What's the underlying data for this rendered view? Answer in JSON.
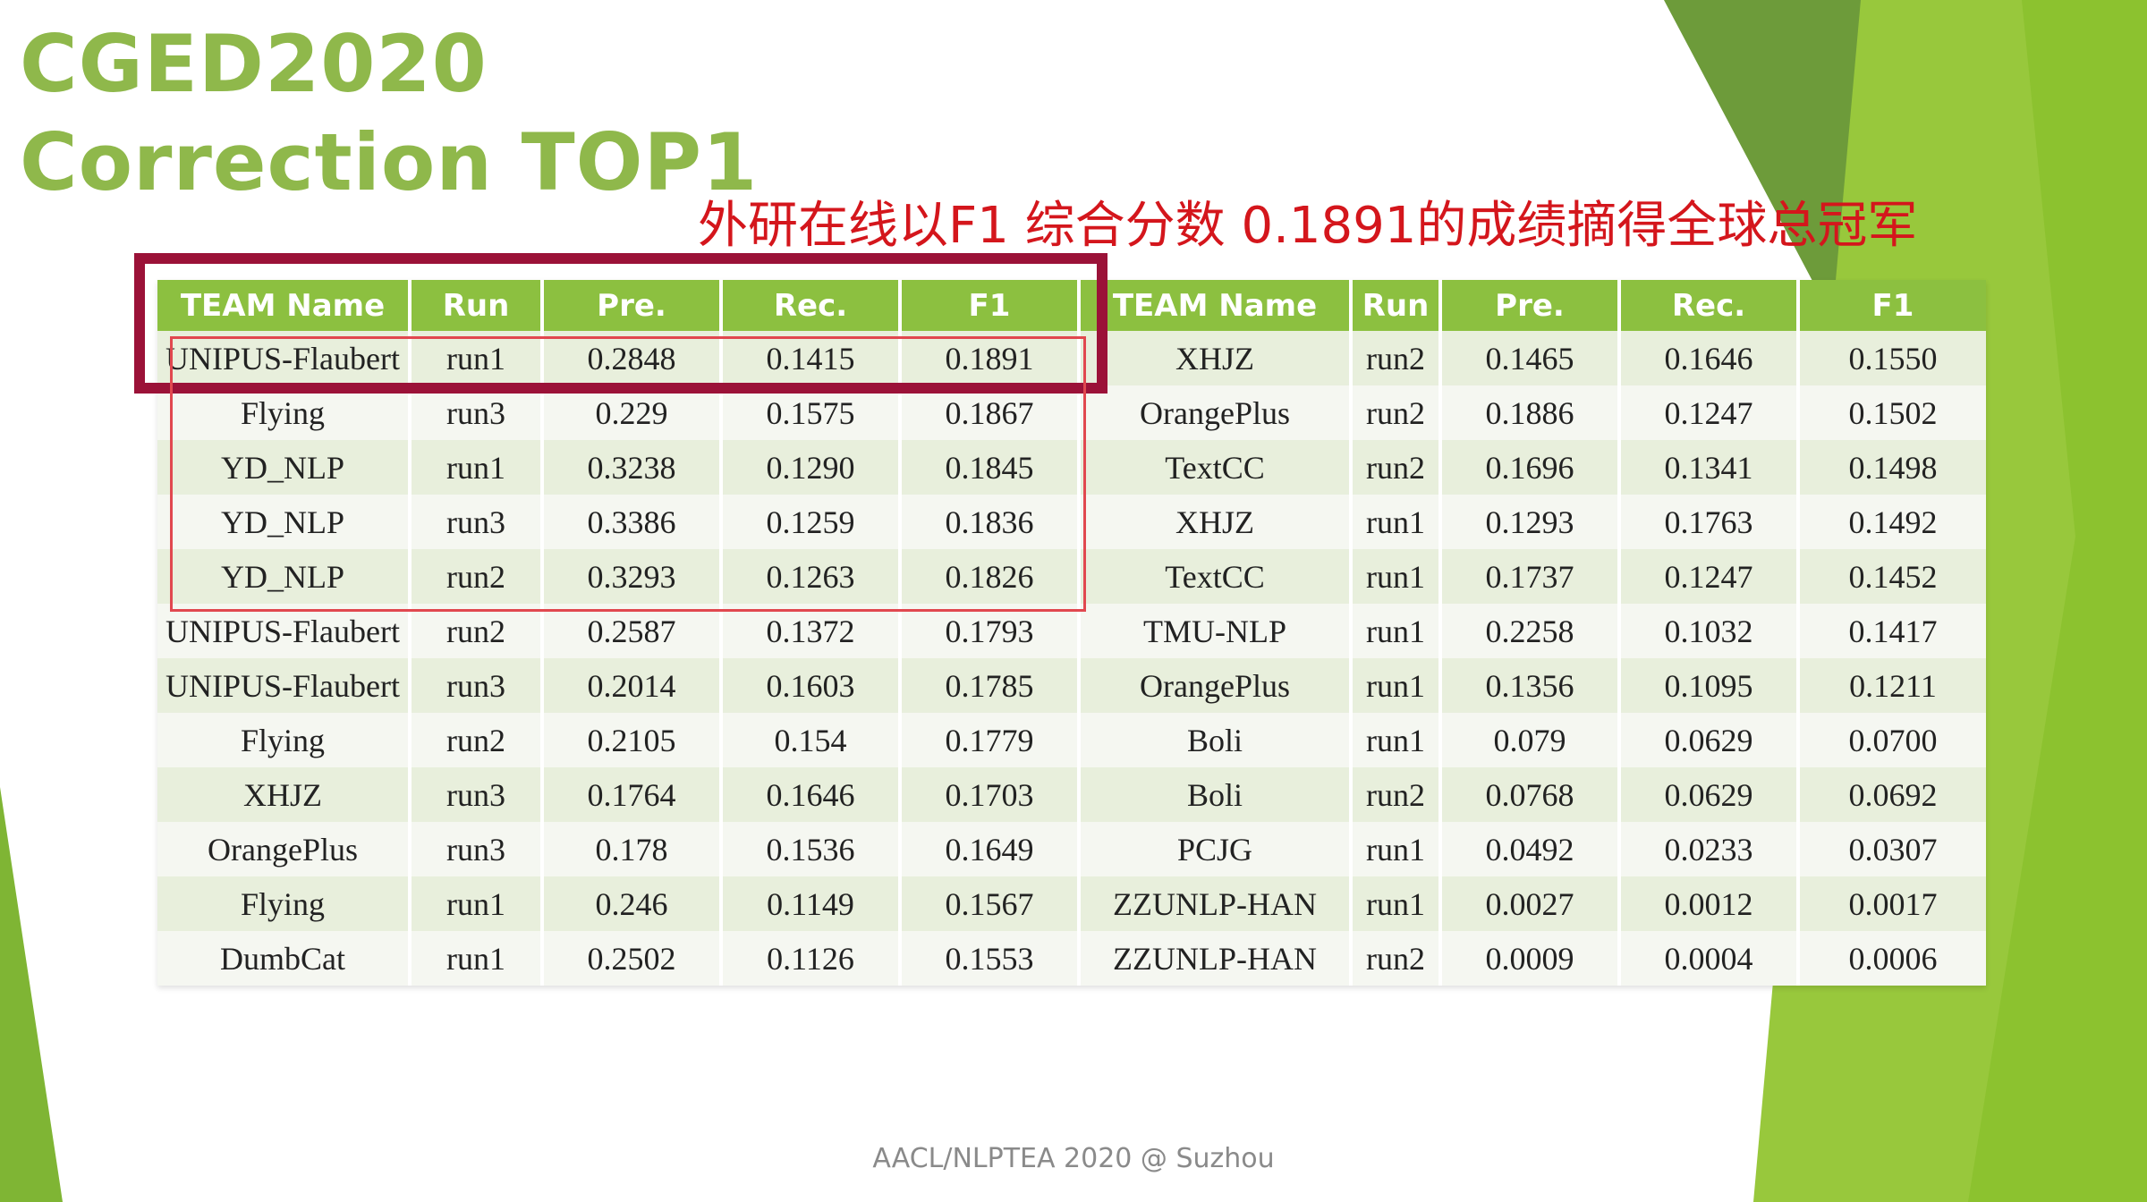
{
  "title": {
    "line1": "CGED2020",
    "line2": "Correction TOP1"
  },
  "headline": "外研在线以F1 综合分数 0.1891的成绩摘得全球总冠军",
  "table": {
    "headers": [
      "TEAM Name",
      "Run",
      "Pre.",
      "Rec.",
      "F1",
      "TEAM Name",
      "Run",
      "Pre.",
      "Rec.",
      "F1"
    ],
    "rows": [
      [
        "UNIPUS-Flaubert",
        "run1",
        "0.2848",
        "0.1415",
        "0.1891",
        "XHJZ",
        "run2",
        "0.1465",
        "0.1646",
        "0.1550"
      ],
      [
        "Flying",
        "run3",
        "0.229",
        "0.1575",
        "0.1867",
        "OrangePlus",
        "run2",
        "0.1886",
        "0.1247",
        "0.1502"
      ],
      [
        "YD_NLP",
        "run1",
        "0.3238",
        "0.1290",
        "0.1845",
        "TextCC",
        "run2",
        "0.1696",
        "0.1341",
        "0.1498"
      ],
      [
        "YD_NLP",
        "run3",
        "0.3386",
        "0.1259",
        "0.1836",
        "XHJZ",
        "run1",
        "0.1293",
        "0.1763",
        "0.1492"
      ],
      [
        "YD_NLP",
        "run2",
        "0.3293",
        "0.1263",
        "0.1826",
        "TextCC",
        "run1",
        "0.1737",
        "0.1247",
        "0.1452"
      ],
      [
        "UNIPUS-Flaubert",
        "run2",
        "0.2587",
        "0.1372",
        "0.1793",
        "TMU-NLP",
        "run1",
        "0.2258",
        "0.1032",
        "0.1417"
      ],
      [
        "UNIPUS-Flaubert",
        "run3",
        "0.2014",
        "0.1603",
        "0.1785",
        "OrangePlus",
        "run1",
        "0.1356",
        "0.1095",
        "0.1211"
      ],
      [
        "Flying",
        "run2",
        "0.2105",
        "0.154",
        "0.1779",
        "Boli",
        "run1",
        "0.079",
        "0.0629",
        "0.0700"
      ],
      [
        "XHJZ",
        "run3",
        "0.1764",
        "0.1646",
        "0.1703",
        "Boli",
        "run2",
        "0.0768",
        "0.0629",
        "0.0692"
      ],
      [
        "OrangePlus",
        "run3",
        "0.178",
        "0.1536",
        "0.1649",
        "PCJG",
        "run1",
        "0.0492",
        "0.0233",
        "0.0307"
      ],
      [
        "Flying",
        "run1",
        "0.246",
        "0.1149",
        "0.1567",
        "ZZUNLP-HAN",
        "run1",
        "0.0027",
        "0.0012",
        "0.0017"
      ],
      [
        "DumbCat",
        "run1",
        "0.2502",
        "0.1126",
        "0.1553",
        "ZZUNLP-HAN",
        "run2",
        "0.0009",
        "0.0004",
        "0.0006"
      ]
    ]
  },
  "footer": "AACL/NLPTEA 2020 @ Suzhou",
  "colors": {
    "title": "#8fb84b",
    "headline": "#d4161c",
    "table_header": "#8cc040",
    "highlight_thick": "#9b1238",
    "highlight_thin": "#e1484f"
  }
}
